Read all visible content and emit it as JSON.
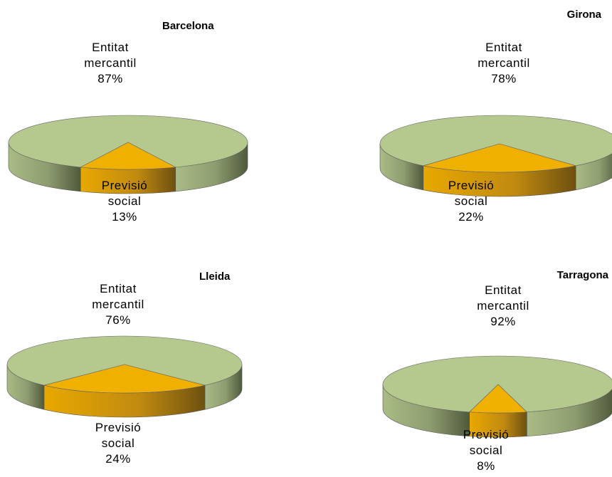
{
  "chart_data": [
    {
      "type": "pie",
      "title": "Barcelona",
      "categories": [
        "Entitat mercantil",
        "Previsió social"
      ],
      "values": [
        87,
        13
      ],
      "value_labels": [
        "87%",
        "13%"
      ],
      "colors": [
        "#b5c88e",
        "#f0b000"
      ]
    },
    {
      "type": "pie",
      "title": "Girona",
      "categories": [
        "Entitat mercantil",
        "Previsió social"
      ],
      "values": [
        78,
        22
      ],
      "value_labels": [
        "78%",
        "22%"
      ],
      "colors": [
        "#b5c88e",
        "#f0b000"
      ]
    },
    {
      "type": "pie",
      "title": "Lleida",
      "categories": [
        "Entitat mercantil",
        "Previsió social"
      ],
      "values": [
        76,
        24
      ],
      "value_labels": [
        "76%",
        "24%"
      ],
      "colors": [
        "#b5c88e",
        "#f0b000"
      ]
    },
    {
      "type": "pie",
      "title": "Tarragona",
      "categories": [
        "Entitat mercantil",
        "Previsió social"
      ],
      "values": [
        92,
        8
      ],
      "value_labels": [
        "92%",
        "8%"
      ],
      "colors": [
        "#b5c88e",
        "#f0b000"
      ]
    }
  ]
}
